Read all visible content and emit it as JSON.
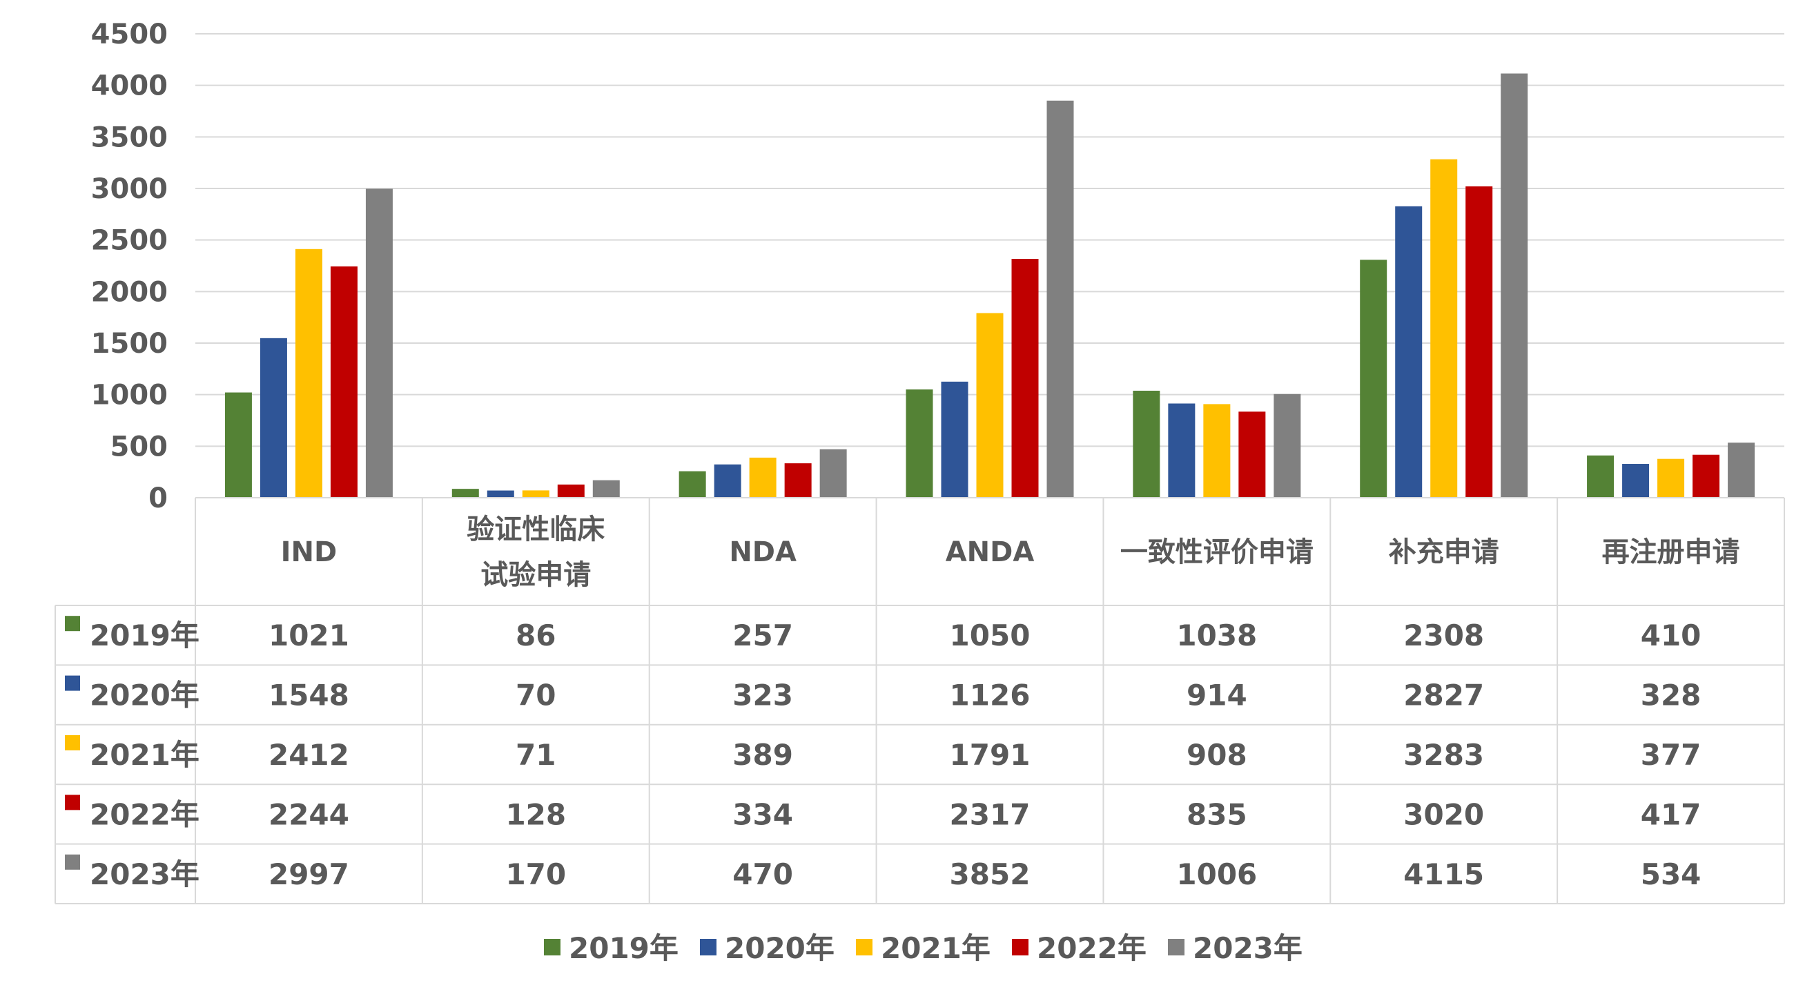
{
  "chart_data": {
    "type": "bar",
    "categories": [
      "IND",
      "验证性临床\n试验申请",
      "NDA",
      "ANDA",
      "一致性评价申请",
      "补充申请",
      "再注册申请"
    ],
    "series": [
      {
        "name": "2019年",
        "color": "#548235",
        "values": [
          1021,
          86,
          257,
          1050,
          1038,
          2308,
          410
        ]
      },
      {
        "name": "2020年",
        "color": "#2F5597",
        "values": [
          1548,
          70,
          323,
          1126,
          914,
          2827,
          328
        ]
      },
      {
        "name": "2021年",
        "color": "#FFC000",
        "values": [
          2412,
          71,
          389,
          1791,
          908,
          3283,
          377
        ]
      },
      {
        "name": "2022年",
        "color": "#C00000",
        "values": [
          2244,
          128,
          334,
          2317,
          835,
          3020,
          417
        ]
      },
      {
        "name": "2023年",
        "color": "#808080",
        "values": [
          2997,
          170,
          470,
          3852,
          1006,
          4115,
          534
        ]
      }
    ],
    "ylim": [
      0,
      4500
    ],
    "yticks": [
      0,
      500,
      1000,
      1500,
      2000,
      2500,
      3000,
      3500,
      4000,
      4500
    ],
    "grid": true,
    "legend": "bottom",
    "data_table": true
  }
}
